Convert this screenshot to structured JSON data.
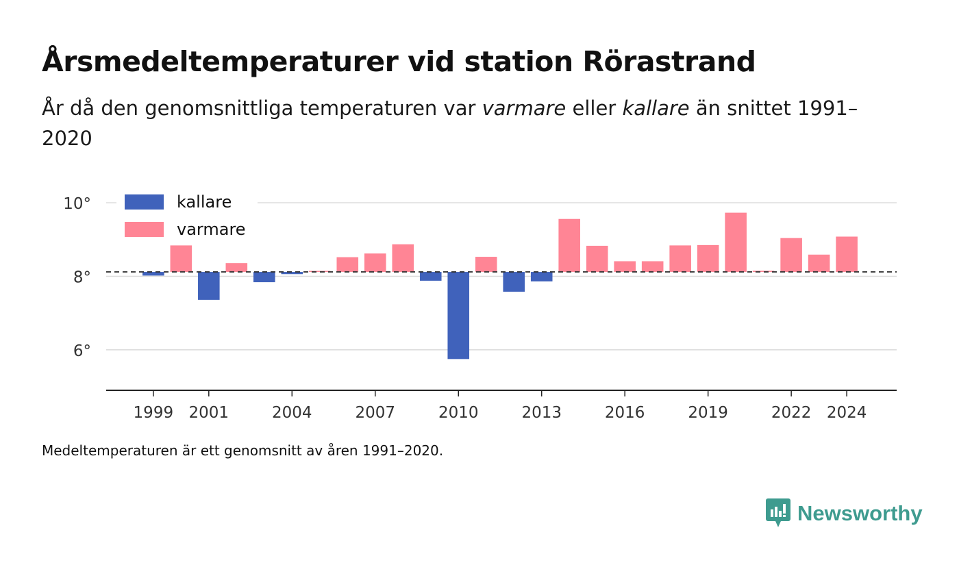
{
  "header": {
    "title": "Årsmedeltemperaturer vid station Rörastrand",
    "subtitle_part1": "År då den genomsnittliga temperaturen var ",
    "subtitle_warm": "varmare",
    "subtitle_part2": " eller ",
    "subtitle_cold": "kallare",
    "subtitle_part3": " än snittet 1991–2020"
  },
  "footer": {
    "note": "Medeltemperaturen är ett genomsnitt av åren 1991–2020.",
    "brand": "Newsworthy"
  },
  "colors": {
    "cold": "#4062bb",
    "warm": "#ff8595",
    "brand": "#3e9b8f"
  },
  "chart_data": {
    "type": "bar",
    "baseline": 8.12,
    "ylim": [
      4.9,
      10.3
    ],
    "yticks": [
      6,
      8,
      10
    ],
    "ytick_labels": [
      "6°",
      "8°",
      "10°"
    ],
    "xlim": [
      1997.3,
      2025.8
    ],
    "xticks": [
      1999,
      2001,
      2004,
      2007,
      2010,
      2013,
      2016,
      2019,
      2022,
      2024
    ],
    "xtick_labels": [
      "1999",
      "2001",
      "2004",
      "2007",
      "2010",
      "2013",
      "2016",
      "2019",
      "2022",
      "2024"
    ],
    "legend": [
      "kallare",
      "varmare"
    ],
    "legend_position": "top-left",
    "grid": true,
    "years": [
      1999,
      2000,
      2001,
      2002,
      2003,
      2004,
      2005,
      2006,
      2007,
      2008,
      2009,
      2010,
      2011,
      2012,
      2013,
      2014,
      2015,
      2016,
      2017,
      2018,
      2019,
      2020,
      2021,
      2022,
      2023,
      2024
    ],
    "values": [
      8.02,
      8.84,
      7.36,
      8.36,
      7.84,
      8.06,
      8.13,
      8.52,
      8.62,
      8.87,
      7.88,
      5.75,
      8.53,
      7.58,
      7.86,
      9.56,
      8.83,
      8.41,
      8.41,
      8.84,
      8.85,
      9.73,
      8.15,
      9.04,
      8.59,
      9.08
    ]
  }
}
